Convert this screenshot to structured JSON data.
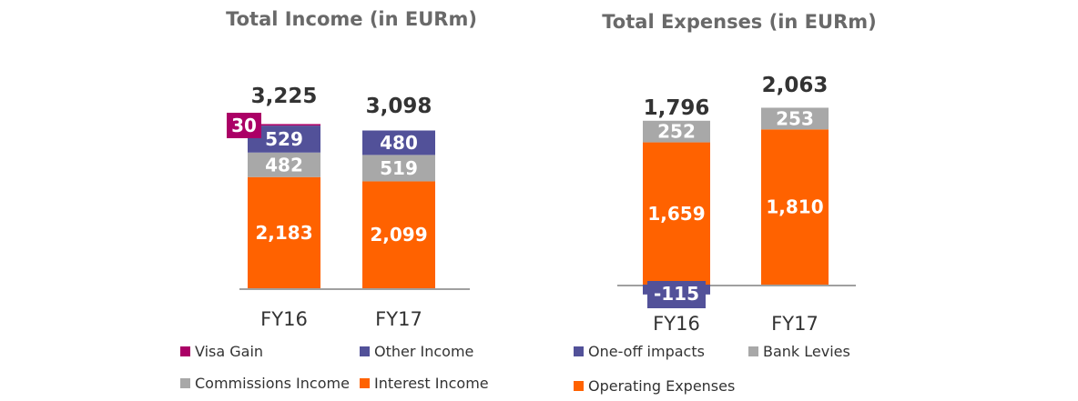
{
  "chart_data": [
    {
      "type": "bar",
      "stacked": true,
      "title": "Total Income (in EURm)",
      "categories": [
        "FY16",
        "FY17"
      ],
      "series": [
        {
          "name": "Interest Income",
          "color": "#FF6200",
          "values": [
            2183,
            2099
          ],
          "labels": [
            "2,183",
            "2,099"
          ]
        },
        {
          "name": "Commissions Income",
          "color": "#A8A8A8",
          "values": [
            482,
            519
          ],
          "labels": [
            "482",
            "519"
          ]
        },
        {
          "name": "Other Income",
          "color": "#525199",
          "values": [
            529,
            480
          ],
          "labels": [
            "529",
            "480"
          ]
        },
        {
          "name": "Visa Gain",
          "color": "#AB0066",
          "values": [
            30,
            0
          ],
          "labels": [
            "30",
            ""
          ]
        }
      ],
      "totals": [
        "3,225",
        "3,098"
      ],
      "legend": {
        "position": "bottom",
        "items": [
          {
            "name": "Visa Gain",
            "color": "#AB0066"
          },
          {
            "name": "Other Income",
            "color": "#525199"
          },
          {
            "name": "Commissions Income",
            "color": "#A8A8A8"
          },
          {
            "name": "Interest Income",
            "color": "#FF6200"
          }
        ]
      }
    },
    {
      "type": "bar",
      "stacked": true,
      "title": "Total Expenses (in EURm)",
      "categories": [
        "FY16",
        "FY17"
      ],
      "series": [
        {
          "name": "Operating Expenses",
          "color": "#FF6200",
          "values": [
            1659,
            1810
          ],
          "labels": [
            "1,659",
            "1,810"
          ]
        },
        {
          "name": "Bank Levies",
          "color": "#A8A8A8",
          "values": [
            252,
            253
          ],
          "labels": [
            "252",
            "253"
          ]
        },
        {
          "name": "One-off impacts",
          "color": "#525199",
          "values": [
            -115,
            0
          ],
          "labels": [
            "-115",
            ""
          ]
        }
      ],
      "totals": [
        "1,796",
        "2,063"
      ],
      "legend": {
        "position": "bottom",
        "items": [
          {
            "name": "One-off impacts",
            "color": "#525199"
          },
          {
            "name": "Bank Levies",
            "color": "#A8A8A8"
          },
          {
            "name": "Operating Expenses",
            "color": "#FF6200"
          }
        ]
      }
    }
  ]
}
